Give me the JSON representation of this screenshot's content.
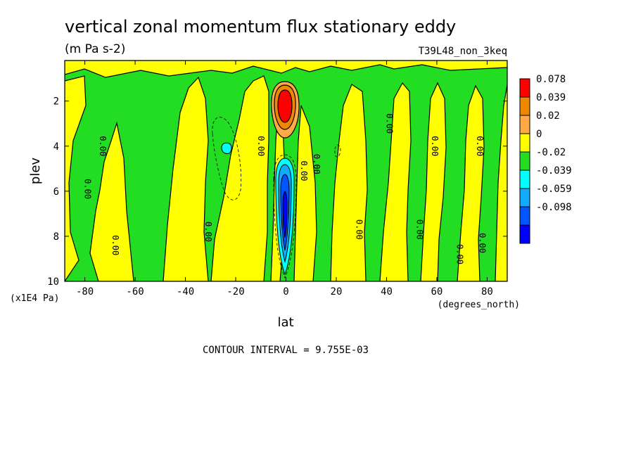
{
  "chart_data": {
    "type": "contour",
    "title": "vertical zonal momentum flux stationary eddy",
    "units": "(m Pa s-2)",
    "dataset_label": "T39L48_non_3keq",
    "xlabel": "lat",
    "x_units": "(degrees_north)",
    "ylabel": "plev",
    "y_units": "(x1E4 Pa)",
    "xlim": [
      -88,
      88
    ],
    "ylim": [
      10,
      0.2
    ],
    "x_ticks": [
      "-80",
      "-60",
      "-40",
      "-20",
      "0",
      "20",
      "40",
      "60",
      "80"
    ],
    "x_tick_values": [
      -80,
      -60,
      -40,
      -20,
      0,
      20,
      40,
      60,
      80
    ],
    "y_ticks": [
      "2",
      "4",
      "6",
      "8",
      "10"
    ],
    "y_tick_values": [
      2,
      4,
      6,
      8,
      10
    ],
    "contour_interval_text": "CONTOUR INTERVAL = 9.755E-03",
    "contour_label": "0.00",
    "legend_levels": [
      "0.078",
      "0.039",
      "0.02",
      "0",
      "-0.02",
      "-0.039",
      "-0.059",
      "-0.098"
    ],
    "legend_colors": [
      "#ff0000",
      "#ee8800",
      "#ffaa44",
      "#ffff00",
      "#22dd22",
      "#00ffff",
      "#11aaff",
      "#0055ff",
      "#0000ff"
    ],
    "features": [
      {
        "name": "positive maximum",
        "lat": 0,
        "plev": 2.3,
        "value": 0.078
      },
      {
        "name": "negative minimum",
        "lat": 0,
        "plev": 7.0,
        "value": -0.098
      },
      {
        "name": "weak negative",
        "lat": -23,
        "plev": 4.0,
        "value": -0.02
      }
    ]
  },
  "colors": {
    "yellow": "#ffff00",
    "green": "#22dd22",
    "orange_light": "#ffaa44",
    "orange": "#ee8800",
    "red": "#ff0000",
    "cyan": "#00ffff",
    "blue_light": "#11aaff",
    "blue": "#0055ff",
    "blue_dark": "#0000ff"
  }
}
